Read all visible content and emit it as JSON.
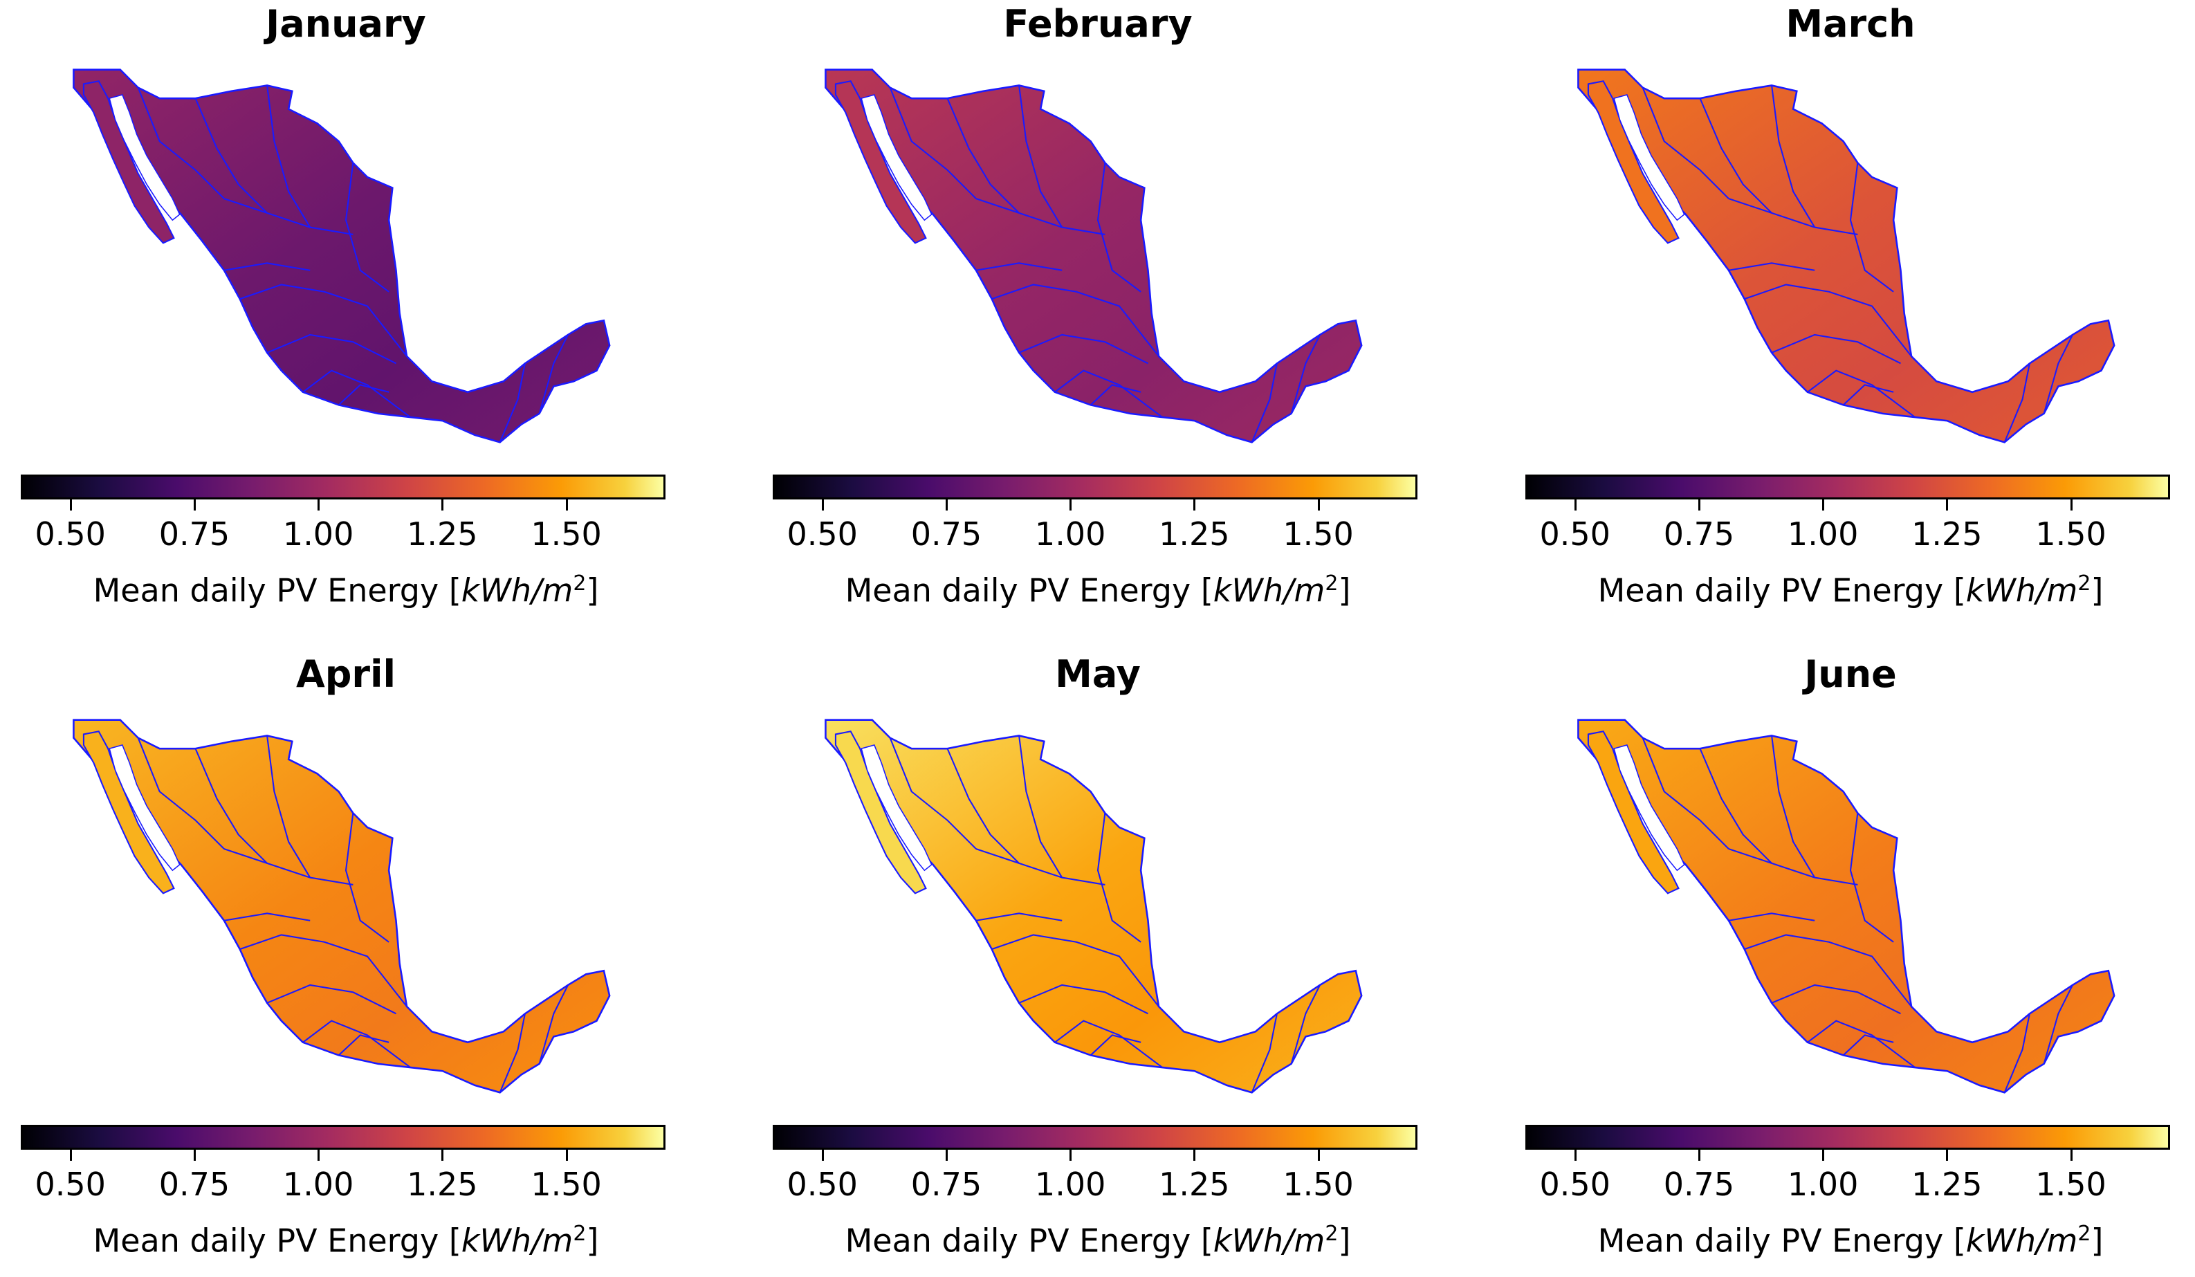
{
  "chart_data": [
    {
      "type": "heatmap",
      "title": "January",
      "level": 0.88,
      "colorbar": {
        "range": [
          0.4,
          1.7
        ],
        "ticks": [
          "0.50",
          "0.75",
          "1.00",
          "1.25",
          "1.50"
        ],
        "label_prefix": "Mean daily PV Energy [",
        "label_unit": "kWh/m",
        "label_sup": "2",
        "label_suffix": "]"
      }
    },
    {
      "type": "heatmap",
      "title": "February",
      "level": 1.02,
      "colorbar": {
        "range": [
          0.4,
          1.7
        ],
        "ticks": [
          "0.50",
          "0.75",
          "1.00",
          "1.25",
          "1.50"
        ],
        "label_prefix": "Mean daily PV Energy [",
        "label_unit": "kWh/m",
        "label_sup": "2",
        "label_suffix": "]"
      }
    },
    {
      "type": "heatmap",
      "title": "March",
      "level": 1.3,
      "colorbar": {
        "range": [
          0.4,
          1.7
        ],
        "ticks": [
          "0.50",
          "0.75",
          "1.00",
          "1.25",
          "1.50"
        ],
        "label_prefix": "Mean daily PV Energy [",
        "label_unit": "kWh/m",
        "label_sup": "2",
        "label_suffix": "]"
      }
    },
    {
      "type": "heatmap",
      "title": "April",
      "level": 1.48,
      "colorbar": {
        "range": [
          0.4,
          1.7
        ],
        "ticks": [
          "0.50",
          "0.75",
          "1.00",
          "1.25",
          "1.50"
        ],
        "label_prefix": "Mean daily PV Energy [",
        "label_unit": "kWh/m",
        "label_sup": "2",
        "label_suffix": "]"
      }
    },
    {
      "type": "heatmap",
      "title": "May",
      "level": 1.57,
      "colorbar": {
        "range": [
          0.4,
          1.7
        ],
        "ticks": [
          "0.50",
          "0.75",
          "1.00",
          "1.25",
          "1.50"
        ],
        "label_prefix": "Mean daily PV Energy [",
        "label_unit": "kWh/m",
        "label_sup": "2",
        "label_suffix": "]"
      }
    },
    {
      "type": "heatmap",
      "title": "June",
      "level": 1.45,
      "colorbar": {
        "range": [
          0.4,
          1.7
        ],
        "ticks": [
          "0.50",
          "0.75",
          "1.00",
          "1.25",
          "1.50"
        ],
        "label_prefix": "Mean daily PV Energy [",
        "label_unit": "kWh/m",
        "label_sup": "2",
        "label_suffix": "]"
      }
    }
  ]
}
